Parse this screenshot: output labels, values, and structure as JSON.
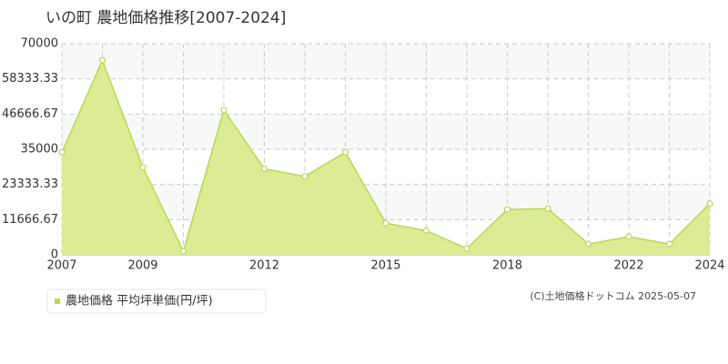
{
  "chart_data": {
    "type": "area",
    "title": "いの町 農地価格推移[2007-2024]",
    "categories": [
      "2007",
      null,
      "2009",
      null,
      null,
      "2012",
      null,
      null,
      "2015",
      null,
      null,
      "2018",
      null,
      null,
      "2022",
      null,
      "2024"
    ],
    "series": [
      {
        "name": "農地価格 平均坪単価(円/坪)",
        "color": "#b8d94e",
        "values": [
          34000,
          64500,
          29000,
          1200,
          48000,
          28500,
          26000,
          34000,
          10500,
          8000,
          2100,
          15000,
          15300,
          3600,
          6000,
          3600,
          17000
        ]
      }
    ],
    "ylim": [
      0,
      70000
    ],
    "yticks": [
      0,
      11666.67,
      23333.33,
      35000,
      46666.67,
      58333.33,
      70000
    ],
    "grid": true,
    "fill_color": "#dcec94",
    "copyright": "(C)土地価格ドットコム 2025-05-07"
  }
}
